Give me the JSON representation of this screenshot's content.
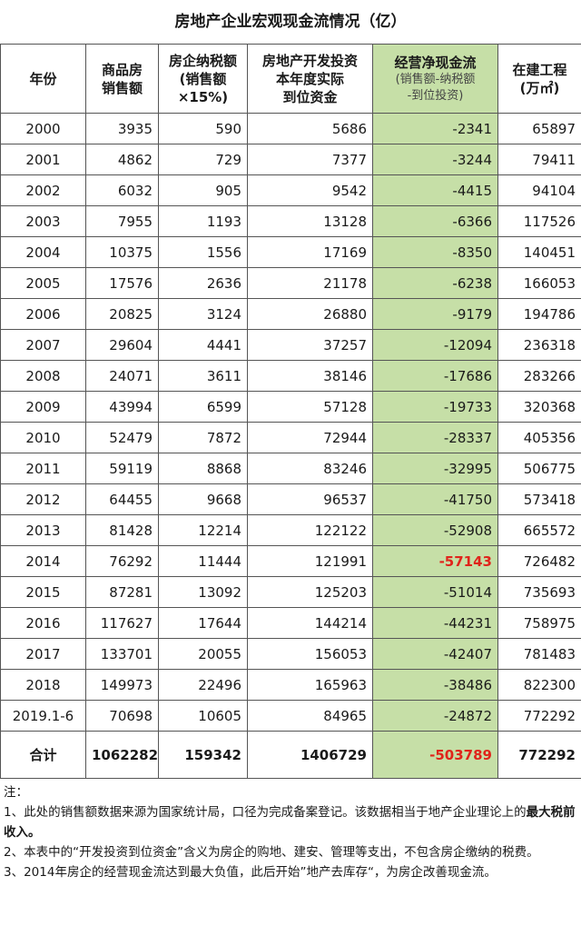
{
  "title": "房地产企业宏观现金流情况（亿）",
  "header": {
    "year": "年份",
    "sales_1": "商品房",
    "sales_2": "销售额",
    "tax_1": "房企纳税额",
    "tax_2": "(销售额",
    "tax_3": "×15%)",
    "invest_1": "房地产开发投资",
    "invest_2": "本年度实际",
    "invest_3": "到位资金",
    "cash_1": "经营净现金流",
    "cash_2": "(销售额-纳税额",
    "cash_3": "-到位投资)",
    "build_1": "在建工程",
    "build_2": "(万㎡)"
  },
  "rows": [
    {
      "year": "2000",
      "sales": "3935",
      "tax": "590",
      "invest": "5686",
      "cash": "-2341",
      "build": "65897"
    },
    {
      "year": "2001",
      "sales": "4862",
      "tax": "729",
      "invest": "7377",
      "cash": "-3244",
      "build": "79411"
    },
    {
      "year": "2002",
      "sales": "6032",
      "tax": "905",
      "invest": "9542",
      "cash": "-4415",
      "build": "94104"
    },
    {
      "year": "2003",
      "sales": "7955",
      "tax": "1193",
      "invest": "13128",
      "cash": "-6366",
      "build": "117526"
    },
    {
      "year": "2004",
      "sales": "10375",
      "tax": "1556",
      "invest": "17169",
      "cash": "-8350",
      "build": "140451"
    },
    {
      "year": "2005",
      "sales": "17576",
      "tax": "2636",
      "invest": "21178",
      "cash": "-6238",
      "build": "166053"
    },
    {
      "year": "2006",
      "sales": "20825",
      "tax": "3124",
      "invest": "26880",
      "cash": "-9179",
      "build": "194786"
    },
    {
      "year": "2007",
      "sales": "29604",
      "tax": "4441",
      "invest": "37257",
      "cash": "-12094",
      "build": "236318"
    },
    {
      "year": "2008",
      "sales": "24071",
      "tax": "3611",
      "invest": "38146",
      "cash": "-17686",
      "build": "283266"
    },
    {
      "year": "2009",
      "sales": "43994",
      "tax": "6599",
      "invest": "57128",
      "cash": "-19733",
      "build": "320368"
    },
    {
      "year": "2010",
      "sales": "52479",
      "tax": "7872",
      "invest": "72944",
      "cash": "-28337",
      "build": "405356"
    },
    {
      "year": "2011",
      "sales": "59119",
      "tax": "8868",
      "invest": "83246",
      "cash": "-32995",
      "build": "506775"
    },
    {
      "year": "2012",
      "sales": "64455",
      "tax": "9668",
      "invest": "96537",
      "cash": "-41750",
      "build": "573418"
    },
    {
      "year": "2013",
      "sales": "81428",
      "tax": "12214",
      "invest": "122122",
      "cash": "-52908",
      "build": "665572"
    },
    {
      "year": "2014",
      "sales": "76292",
      "tax": "11444",
      "invest": "121991",
      "cash": "-57143",
      "build": "726482",
      "highlight": true
    },
    {
      "year": "2015",
      "sales": "87281",
      "tax": "13092",
      "invest": "125203",
      "cash": "-51014",
      "build": "735693"
    },
    {
      "year": "2016",
      "sales": "117627",
      "tax": "17644",
      "invest": "144214",
      "cash": "-44231",
      "build": "758975"
    },
    {
      "year": "2017",
      "sales": "133701",
      "tax": "20055",
      "invest": "156053",
      "cash": "-42407",
      "build": "781483"
    },
    {
      "year": "2018",
      "sales": "149973",
      "tax": "22496",
      "invest": "165963",
      "cash": "-38486",
      "build": "822300"
    },
    {
      "year": "2019.1-6",
      "sales": "70698",
      "tax": "10605",
      "invest": "84965",
      "cash": "-24872",
      "build": "772292"
    }
  ],
  "total": {
    "year": "合计",
    "sales": "1062282",
    "tax": "159342",
    "invest": "1406729",
    "cash": "-503789",
    "build": "772292"
  },
  "notes": {
    "label": "注：",
    "n1_a": "1、此处的销售额数据来源为国家统计局，口径为完成备案登记。该数据相当于地产企业理论上的",
    "n1_b": "最大税前收入。",
    "n2": "2、本表中的“开发投资到位资金”含义为房企的购地、建安、管理等支出，不包含房企缴纳的税费。",
    "n3": "3、2014年房企的经营现金流达到最大负值，此后开始”地产去库存“，为房企改善现金流。"
  },
  "colors": {
    "highlight_column": "#c6dfa7",
    "negative_peak": "#e0241b"
  }
}
